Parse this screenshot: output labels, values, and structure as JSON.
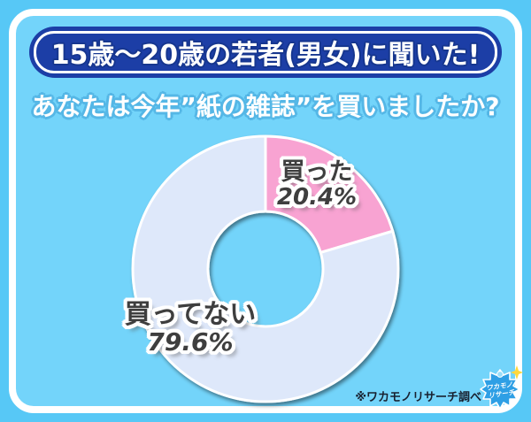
{
  "banner": {
    "title": "15歳～20歳の若者(男女)に聞いた!"
  },
  "question": "あなたは今年”紙の雑誌”を買いましたか?",
  "chart_data": {
    "type": "pie",
    "subtype": "donut",
    "title": "あなたは今年”紙の雑誌”を買いましたか?",
    "start_angle": "12-o'clock, clockwise",
    "inner_radius_ratio": 0.43,
    "segments": [
      {
        "label": "買った",
        "value": 20.4,
        "display_value": "20.4%",
        "color": "#F8A3D2"
      },
      {
        "label": "買ってない",
        "value": 79.6,
        "display_value": "79.6%",
        "color": "#DEE8FA"
      }
    ]
  },
  "footnote": "※ワカモノリサーチ調べ",
  "logo": {
    "name": "wakamono-research-logo",
    "line1": "ワカモノ",
    "line2": "リサーチ"
  },
  "colors": {
    "background_outer": "#57C8F6",
    "background_card": "#73D4FA",
    "card_border": "#FFFFFF",
    "banner_background": "#1C3EA6",
    "banner_text": "#FFFFFF",
    "question_text": "#FFFFFF",
    "slice_label_text": "#3E3E3E",
    "footnote_text": "#18202F",
    "logo_blue": "#2E9FE5",
    "logo_spark_yellow": "#FFD83D"
  }
}
